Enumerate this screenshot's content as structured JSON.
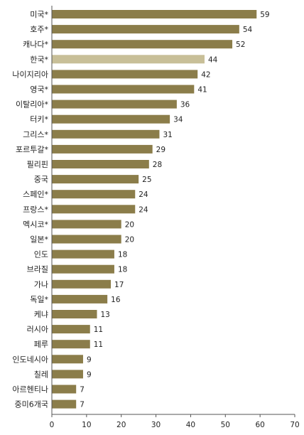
{
  "chart_data": {
    "type": "bar",
    "orientation": "horizontal",
    "categories": [
      "미국*",
      "호주*",
      "캐나다*",
      "한국*",
      "나이지리아",
      "영국*",
      "이탈리아*",
      "터키*",
      "그리스*",
      "포르투갈*",
      "필리핀",
      "중국",
      "스페인*",
      "프랑스*",
      "멕시코*",
      "일본*",
      "인도",
      "브라질",
      "가나",
      "독일*",
      "케냐",
      "러시아",
      "페루",
      "인도네시아",
      "칠레",
      "아르헨티나",
      "중미6개국"
    ],
    "values": [
      59,
      54,
      52,
      44,
      42,
      41,
      36,
      34,
      31,
      29,
      28,
      25,
      24,
      24,
      20,
      20,
      18,
      18,
      17,
      16,
      13,
      11,
      11,
      9,
      9,
      7,
      7
    ],
    "value_labels": [
      "59",
      "54",
      "52",
      "44",
      "42",
      "41",
      "36",
      "34",
      "31",
      "29",
      "28",
      "25",
      "24",
      "24",
      "20",
      "20",
      "18",
      "18",
      "17",
      "16",
      "13",
      "11",
      "11",
      "9",
      "9",
      "7",
      "7"
    ],
    "highlight_index": 3,
    "xlim": [
      0,
      70
    ],
    "x_ticks": [
      "0",
      "10",
      "20",
      "30",
      "40",
      "50",
      "60",
      "70"
    ],
    "grid": false,
    "colors": {
      "bar": "#8b7d4a",
      "highlight": "#c8bf98",
      "axis": "#555555",
      "text": "#222222"
    }
  }
}
